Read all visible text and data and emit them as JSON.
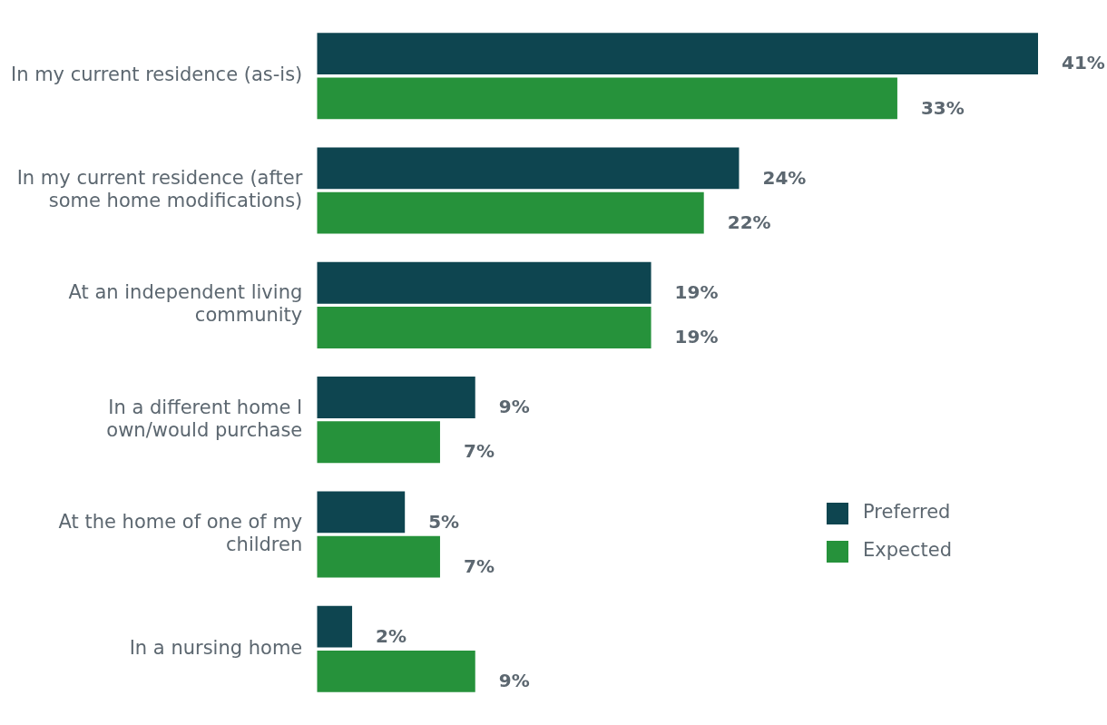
{
  "chart_data": {
    "type": "bar",
    "orientation": "horizontal",
    "categories": [
      "In my current residence (as-is)",
      "In my current residence (after some home modifications)",
      "At an independent living community",
      "In a different home I own/would purchase",
      "At the home of one of my children",
      "In a nursing home"
    ],
    "series": [
      {
        "name": "Preferred",
        "color": "#0e4550",
        "values": [
          41,
          24,
          19,
          9,
          5,
          2
        ],
        "value_labels": [
          "41%",
          "24%",
          "19%",
          "9%",
          "5%",
          "2%"
        ]
      },
      {
        "name": "Expected",
        "color": "#26923b",
        "values": [
          33,
          22,
          19,
          7,
          7,
          9
        ],
        "value_labels": [
          "33%",
          "22%",
          "19%",
          "7%",
          "7%",
          "9%"
        ]
      }
    ],
    "legend": "right"
  }
}
